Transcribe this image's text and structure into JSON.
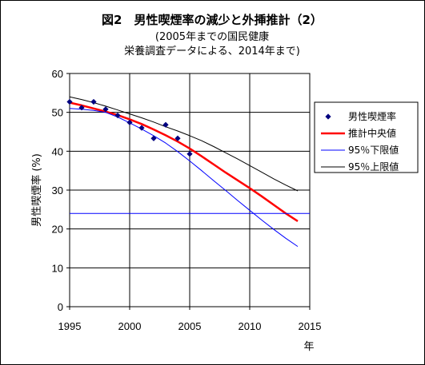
{
  "chart_data": {
    "type": "line",
    "title": "図2　男性喫煙率の減少と外挿推計（2）",
    "subtitle_lines": [
      "(2005年までの国民健康",
      "栄養調査データによる、2014年まで)"
    ],
    "xlabel": "年",
    "ylabel": "男性喫煙率 (%)",
    "xlim": [
      1995,
      2015
    ],
    "ylim": [
      0,
      60
    ],
    "x_ticks": [
      1995,
      2000,
      2005,
      2010,
      2015
    ],
    "y_ticks": [
      0,
      10,
      20,
      30,
      40,
      50,
      60
    ],
    "grid": true,
    "legend_position": "right",
    "series": [
      {
        "name": "男性喫煙率",
        "kind": "marker",
        "color": "#00007f",
        "x": [
          1995,
          1996,
          1997,
          1998,
          1999,
          2000,
          2001,
          2002,
          2003,
          2004,
          2005
        ],
        "y": [
          52.7,
          51.2,
          52.7,
          50.8,
          49.2,
          47.4,
          46.0,
          43.3,
          46.8,
          43.3,
          39.3
        ]
      },
      {
        "name": "推計中央値",
        "kind": "line",
        "color": "#ff0000",
        "width": 2.5,
        "x": [
          1995,
          1996,
          1997,
          1998,
          1999,
          2000,
          2001,
          2002,
          2003,
          2004,
          2005,
          2006,
          2007,
          2008,
          2009,
          2010,
          2011,
          2012,
          2013,
          2014
        ],
        "y": [
          52.5,
          51.8,
          51.0,
          50.2,
          49.3,
          48.2,
          47.0,
          45.6,
          44.1,
          42.5,
          40.7,
          38.7,
          36.6,
          34.5,
          32.5,
          30.5,
          28.4,
          26.2,
          24.0,
          22.0
        ]
      },
      {
        "name": "95％下限値",
        "kind": "line",
        "color": "#0000ff",
        "width": 1,
        "x": [
          1995,
          1996,
          1997,
          1998,
          1999,
          2000,
          2001,
          2002,
          2003,
          2004,
          2005,
          2006,
          2007,
          2008,
          2009,
          2010,
          2011,
          2012,
          2013,
          2014
        ],
        "y": [
          51.0,
          50.8,
          50.5,
          50.0,
          48.8,
          47.3,
          45.7,
          44.0,
          42.1,
          39.9,
          37.5,
          35.0,
          32.4,
          29.9,
          27.3,
          24.8,
          22.3,
          19.9,
          17.6,
          15.5
        ]
      },
      {
        "name": "95％上限値",
        "kind": "line",
        "color": "#000000",
        "width": 1,
        "x": [
          1995,
          1996,
          1997,
          1998,
          1999,
          2000,
          2001,
          2002,
          2003,
          2004,
          2005,
          2006,
          2007,
          2008,
          2009,
          2010,
          2011,
          2012,
          2013,
          2014
        ],
        "y": [
          54.0,
          53.3,
          52.5,
          51.6,
          50.6,
          49.6,
          48.6,
          47.5,
          46.3,
          45.2,
          44.0,
          42.7,
          41.2,
          39.6,
          38.0,
          36.3,
          34.6,
          32.9,
          31.3,
          29.8
        ]
      },
      {
        "name": "",
        "kind": "hline",
        "color": "#0000ff",
        "width": 1,
        "y": 24
      }
    ]
  }
}
